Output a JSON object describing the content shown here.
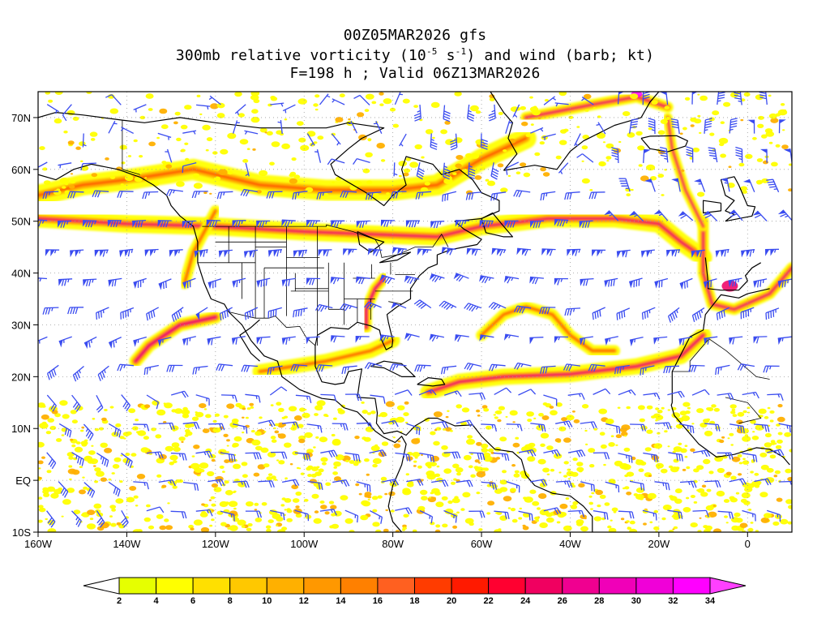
{
  "title": {
    "line1": "00Z05MAR2026 gfs",
    "line2_prefix": "300mb relative vorticity (10",
    "line2_exp1": "-5",
    "line2_mid": " s",
    "line2_exp2": "-1",
    "line2_suffix": ") and wind (barb; kt)",
    "line3": "F=198 h ; Valid 06Z13MAR2026"
  },
  "axes": {
    "lon_ticks": [
      "160W",
      "140W",
      "120W",
      "100W",
      "80W",
      "60W",
      "40W",
      "20W",
      "0"
    ],
    "lon_values": [
      -160,
      -140,
      -120,
      -100,
      -80,
      -60,
      -40,
      -20,
      0
    ],
    "lat_ticks": [
      "70N",
      "60N",
      "50N",
      "40N",
      "30N",
      "20N",
      "10N",
      "EQ",
      "10S"
    ],
    "lat_values": [
      70,
      60,
      50,
      40,
      30,
      20,
      10,
      0,
      -10
    ],
    "lon_range": [
      -160,
      10
    ],
    "lat_range": [
      -10,
      75
    ],
    "grid": "dotted"
  },
  "colorbar": {
    "labels": [
      "2",
      "4",
      "6",
      "8",
      "10",
      "12",
      "14",
      "16",
      "18",
      "20",
      "22",
      "24",
      "26",
      "28",
      "30",
      "32",
      "34"
    ],
    "colors": [
      "#ffffff",
      "#e6ff00",
      "#ffff00",
      "#ffe000",
      "#ffc800",
      "#ffb000",
      "#ff9800",
      "#ff8000",
      "#ff6020",
      "#ff3c00",
      "#ff1a00",
      "#ff0030",
      "#f00060",
      "#f00090",
      "#f000b8",
      "#f000d8",
      "#ff00ff",
      "#ff40ff"
    ]
  },
  "map": {
    "vorticity_colors": {
      "low": "#ffff00",
      "mid": "#ffb000",
      "high": "#ff5000",
      "max": "#ee0a6a",
      "peak": "#ff00ff"
    },
    "barb_color": "#3a4cf0",
    "coast_color": "#000000"
  }
}
